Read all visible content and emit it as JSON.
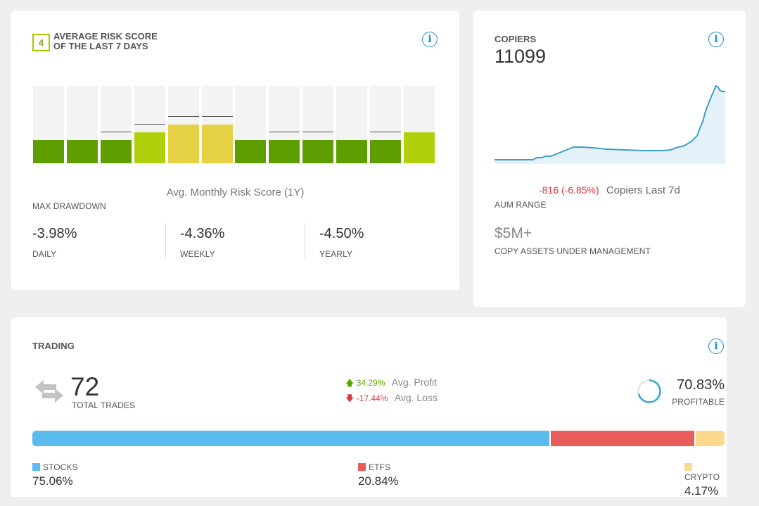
{
  "risk": {
    "badge": "4",
    "title": "AVERAGE RISK SCORE OF THE LAST 7 DAYS",
    "bars": [
      {
        "level": 0.3,
        "color": "#5e9e00",
        "mark": null
      },
      {
        "level": 0.3,
        "color": "#5e9e00",
        "mark": null
      },
      {
        "level": 0.3,
        "color": "#5e9e00",
        "mark": 0.4
      },
      {
        "level": 0.4,
        "color": "#b2cf0c",
        "mark": 0.5
      },
      {
        "level": 0.5,
        "color": "#e6d144",
        "mark": 0.6
      },
      {
        "level": 0.5,
        "color": "#e6d144",
        "mark": 0.6
      },
      {
        "level": 0.3,
        "color": "#5e9e00",
        "mark": null
      },
      {
        "level": 0.3,
        "color": "#5e9e00",
        "mark": 0.4
      },
      {
        "level": 0.3,
        "color": "#5e9e00",
        "mark": 0.4
      },
      {
        "level": 0.3,
        "color": "#5e9e00",
        "mark": null
      },
      {
        "level": 0.3,
        "color": "#5e9e00",
        "mark": 0.4
      },
      {
        "level": 0.4,
        "color": "#b2cf0c",
        "mark": null
      }
    ],
    "avg_monthly_label": "Avg. Monthly Risk Score (1Y)",
    "max_drawdown_label": "MAX DRAWDOWN",
    "drawdowns": [
      {
        "value": "-3.98%",
        "label": "DAILY"
      },
      {
        "value": "-4.36%",
        "label": "WEEKLY"
      },
      {
        "value": "-4.50%",
        "label": "YEARLY"
      }
    ]
  },
  "copiers": {
    "title": "COPIERS",
    "count": "11099",
    "change": "-816 (-6.85%)",
    "change_label": "Copiers Last 7d",
    "aum_range_label": "AUM RANGE",
    "aum_value": "$5M+",
    "aum_caption": "COPY ASSETS UNDER MANAGEMENT",
    "line_color": "#3a9fc8",
    "fill_color": "#e4f1f9"
  },
  "trading": {
    "title": "TRADING",
    "total_trades": "72",
    "total_trades_label": "TOTAL TRADES",
    "avg_profit_value": "34.29%",
    "avg_profit_label": "Avg. Profit",
    "avg_loss_value": "-17.44%",
    "avg_loss_label": "Avg. Loss",
    "profitable_value": "70.83%",
    "profitable_label": "PROFITABLE",
    "profitable_fraction": 0.7083,
    "allocation": [
      {
        "name": "STOCKS",
        "value": "75.06%",
        "fraction": 0.7506,
        "color": "#5bbcef"
      },
      {
        "name": "ETFS",
        "value": "20.84%",
        "fraction": 0.2084,
        "color": "#e85c5c"
      },
      {
        "name": "CRYPTO",
        "value": "4.17%",
        "fraction": 0.0417,
        "color": "#fbd88a"
      }
    ]
  },
  "colors": {
    "accent": "#1a8fd1",
    "positive": "#5aa400",
    "negative": "#d9393e"
  }
}
